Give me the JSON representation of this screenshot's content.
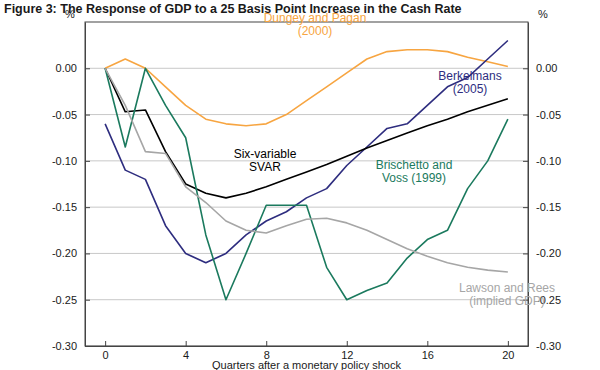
{
  "chart_data": {
    "type": "line",
    "title": "Figure 3: The Response of GDP to a 25 Basis Point Increase in the Cash Rate",
    "xlabel": "Quarters after a monetary policy shock",
    "ylabel": "%",
    "x": [
      0,
      1,
      2,
      3,
      4,
      5,
      6,
      7,
      8,
      9,
      10,
      11,
      12,
      13,
      14,
      15,
      16,
      17,
      18,
      19,
      20
    ],
    "xlim": [
      -1,
      21
    ],
    "xticks": [
      0,
      4,
      8,
      12,
      16,
      20
    ],
    "ylim": [
      -0.3,
      0.05
    ],
    "yticks": [
      {
        "value": 0,
        "label": "0.00"
      },
      {
        "value": -0.05,
        "label": "-0.05"
      },
      {
        "value": -0.1,
        "label": "-0.10"
      },
      {
        "value": -0.15,
        "label": "-0.15"
      },
      {
        "value": -0.2,
        "label": "-0.20"
      },
      {
        "value": -0.25,
        "label": "-0.25"
      },
      {
        "value": -0.3,
        "label": "-0.30"
      }
    ],
    "grid": true,
    "series": [
      {
        "name": "Dungey and Pagan (2000)",
        "color": "#f7a541",
        "values": [
          0.0,
          0.01,
          0.0,
          -0.02,
          -0.04,
          -0.055,
          -0.06,
          -0.062,
          -0.06,
          -0.05,
          -0.035,
          -0.02,
          -0.005,
          0.01,
          0.018,
          0.02,
          0.02,
          0.018,
          0.012,
          0.007,
          0.002
        ]
      },
      {
        "name": "Berkelmans (2005)",
        "color": "#2e2d7f",
        "values": [
          -0.06,
          -0.11,
          -0.12,
          -0.17,
          -0.2,
          -0.21,
          -0.2,
          -0.18,
          -0.165,
          -0.155,
          -0.14,
          -0.13,
          -0.105,
          -0.085,
          -0.065,
          -0.06,
          -0.04,
          -0.02,
          -0.01,
          0.01,
          0.03
        ]
      },
      {
        "name": "Six-variable SVAR",
        "color": "#000000",
        "values": [
          0.0,
          -0.047,
          -0.045,
          -0.09,
          -0.125,
          -0.135,
          -0.14,
          -0.135,
          -0.128,
          -0.12,
          -0.112,
          -0.104,
          -0.095,
          -0.086,
          -0.078,
          -0.07,
          -0.062,
          -0.055,
          -0.047,
          -0.04,
          -0.033
        ]
      },
      {
        "name": "Brischetto and Voss (1999)",
        "color": "#1b7a5e",
        "values": [
          0.0,
          -0.085,
          0.0,
          -0.04,
          -0.075,
          -0.18,
          -0.25,
          -0.2,
          -0.148,
          -0.148,
          -0.148,
          -0.215,
          -0.25,
          -0.24,
          -0.232,
          -0.205,
          -0.185,
          -0.175,
          -0.13,
          -0.1,
          -0.055
        ]
      },
      {
        "name": "Lawson and Rees (implied GDP)",
        "color": "#a6a6a6",
        "values": [
          0.0,
          -0.04,
          -0.09,
          -0.092,
          -0.128,
          -0.145,
          -0.165,
          -0.175,
          -0.178,
          -0.17,
          -0.163,
          -0.162,
          -0.167,
          -0.175,
          -0.185,
          -0.195,
          -0.203,
          -0.21,
          -0.215,
          -0.218,
          -0.22
        ]
      }
    ]
  }
}
